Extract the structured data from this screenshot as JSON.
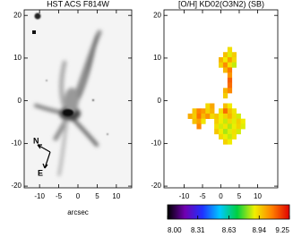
{
  "chart_data": [
    {
      "type": "image",
      "title": "HST ACS F814W",
      "xlabel": "arcsec",
      "annotations": [
        "N",
        "E"
      ],
      "xlim": [
        -14,
        14
      ],
      "ylim": [
        -20.4,
        21.3
      ],
      "xticks": [
        -10,
        -5,
        0,
        5,
        10
      ],
      "yticks": [
        -20,
        -10,
        0,
        10,
        20
      ]
    },
    {
      "type": "heatmap",
      "title": "[O/H] KD02(O3N2) (SB)",
      "xlim": [
        -15.5,
        15.5
      ],
      "ylim": [
        -20.4,
        21.3
      ],
      "xticks": [
        -10,
        -5,
        0,
        5,
        10
      ],
      "yticks": [
        -20,
        -10,
        0,
        10,
        20
      ],
      "x": [
        2.4,
        1.2,
        2.4,
        3.6,
        0,
        1.2,
        2.4,
        3.6,
        0,
        1.2,
        2.4,
        3.6,
        1.2,
        2.4,
        2.4,
        2.4,
        2.4,
        1.2,
        2.4,
        1.2,
        -3.6,
        -2.4,
        1.2,
        2.4,
        -7.2,
        -6,
        -4.8,
        -3.6,
        -2.4,
        0,
        1.2,
        2.4,
        3.6,
        -8.4,
        -7.2,
        -6,
        -4.8,
        -3.6,
        -2.4,
        -1.2,
        0,
        1.2,
        2.4,
        3.6,
        4.8,
        -7.2,
        -6,
        -4.8,
        -1.2,
        0,
        1.2,
        2.4,
        3.6,
        4.8,
        6,
        -6,
        -1.2,
        0,
        1.2,
        2.4,
        3.6,
        4.8,
        6,
        -1.2,
        0,
        1.2,
        2.4,
        3.6,
        4.8,
        0,
        1.2,
        2.4,
        3.6,
        1.2,
        2.4
      ],
      "y": [
        12,
        10.8,
        10.8,
        10.8,
        9.6,
        9.6,
        9.6,
        9.6,
        8.4,
        8.4,
        8.4,
        8.4,
        7.2,
        7.2,
        6,
        4.8,
        3.6,
        2.4,
        2.4,
        1.2,
        -1.2,
        -1.2,
        -1.2,
        -1.2,
        -2.4,
        -2.4,
        -2.4,
        -2.4,
        -2.4,
        -2.4,
        -2.4,
        -2.4,
        -2.4,
        -3.6,
        -3.6,
        -3.6,
        -3.6,
        -3.6,
        -3.6,
        -3.6,
        -3.6,
        -3.6,
        -3.6,
        -3.6,
        -3.6,
        -4.8,
        -4.8,
        -4.8,
        -4.8,
        -4.8,
        -4.8,
        -4.8,
        -4.8,
        -4.8,
        -4.8,
        -6,
        -6,
        -6,
        -6,
        -6,
        -6,
        -6,
        -6,
        -7.2,
        -7.2,
        -7.2,
        -7.2,
        -7.2,
        -7.2,
        -8.4,
        -8.4,
        -8.4,
        -8.4,
        -9.6,
        -9.6
      ],
      "values": [
        8.92,
        8.97,
        8.88,
        8.95,
        8.99,
        8.9,
        9.02,
        8.93,
        8.94,
        9.05,
        8.91,
        8.86,
        8.98,
        9.08,
        9.04,
        9.12,
        9.1,
        8.99,
        9.06,
        8.95,
        8.93,
        9.01,
        8.97,
        8.9,
        8.96,
        9.07,
        9.03,
        8.94,
        8.99,
        8.92,
        9.1,
        8.97,
        8.91,
        9.0,
        8.95,
        9.09,
        8.98,
        9.04,
        8.93,
        8.96,
        8.89,
        8.94,
        8.99,
        8.92,
        8.87,
        8.97,
        9.02,
        8.91,
        8.95,
        8.9,
        8.86,
        8.93,
        8.88,
        8.95,
        8.9,
        9.06,
        8.92,
        8.87,
        8.91,
        8.85,
        8.89,
        8.94,
        8.88,
        8.96,
        8.9,
        8.84,
        8.88,
        8.92,
        8.87,
        8.93,
        8.89,
        8.86,
        8.91,
        8.94,
        8.9
      ],
      "colorbar": {
        "lim": [
          8.0,
          9.25
        ],
        "ticks": [
          {
            "value": 8.0,
            "label": "8.00"
          },
          8.31,
          8.63,
          8.94,
          9.25
        ],
        "colors": [
          "#000000",
          "#7000b0",
          "#2030ff",
          "#00c8ff",
          "#00d040",
          "#f0f000",
          "#ff8000",
          "#e00000"
        ]
      }
    }
  ]
}
